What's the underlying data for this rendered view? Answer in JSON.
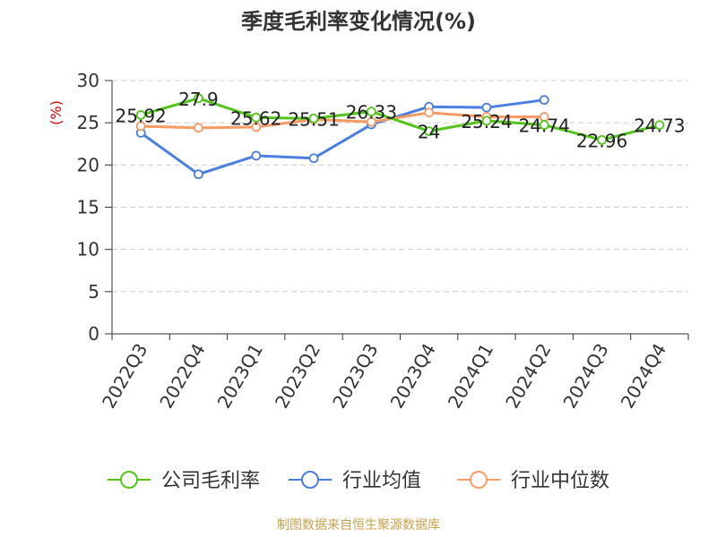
{
  "chart_data": {
    "type": "line",
    "title": "季度毛利率变化情况(%)",
    "ylabel": "(%)",
    "xlabel": "",
    "categories": [
      "2022Q3",
      "2022Q4",
      "2023Q1",
      "2023Q2",
      "2023Q3",
      "2023Q4",
      "2024Q1",
      "2024Q2",
      "2024Q3",
      "2024Q4"
    ],
    "ylim": [
      0,
      30
    ],
    "yticks": [
      0,
      5,
      10,
      15,
      20,
      25,
      30
    ],
    "grid": true,
    "legend_position": "bottom",
    "series": [
      {
        "name": "公司毛利率",
        "color": "#52c41a",
        "values": [
          25.92,
          27.9,
          25.62,
          25.51,
          26.33,
          24,
          25.24,
          24.74,
          22.96,
          24.73
        ],
        "labels": [
          "25.92",
          "27.9",
          "25.62",
          "25.51",
          "26.33",
          "24",
          "25.24",
          "24.74",
          "22.96",
          "24.73"
        ]
      },
      {
        "name": "行业均值",
        "color": "#4a7fe0",
        "values": [
          23.8,
          18.9,
          21.1,
          20.8,
          24.8,
          26.9,
          26.8,
          27.7,
          null,
          null
        ]
      },
      {
        "name": "行业中位数",
        "color": "#f79a63",
        "values": [
          24.6,
          24.4,
          24.5,
          25.4,
          25.1,
          26.2,
          25.7,
          25.7,
          null,
          null
        ]
      }
    ]
  },
  "footer": {
    "source": "制图数据来自恒生聚源数据库"
  },
  "colors": {
    "unit_label": "#cc0000",
    "grid": "#cccccc",
    "axis": "#333333"
  }
}
